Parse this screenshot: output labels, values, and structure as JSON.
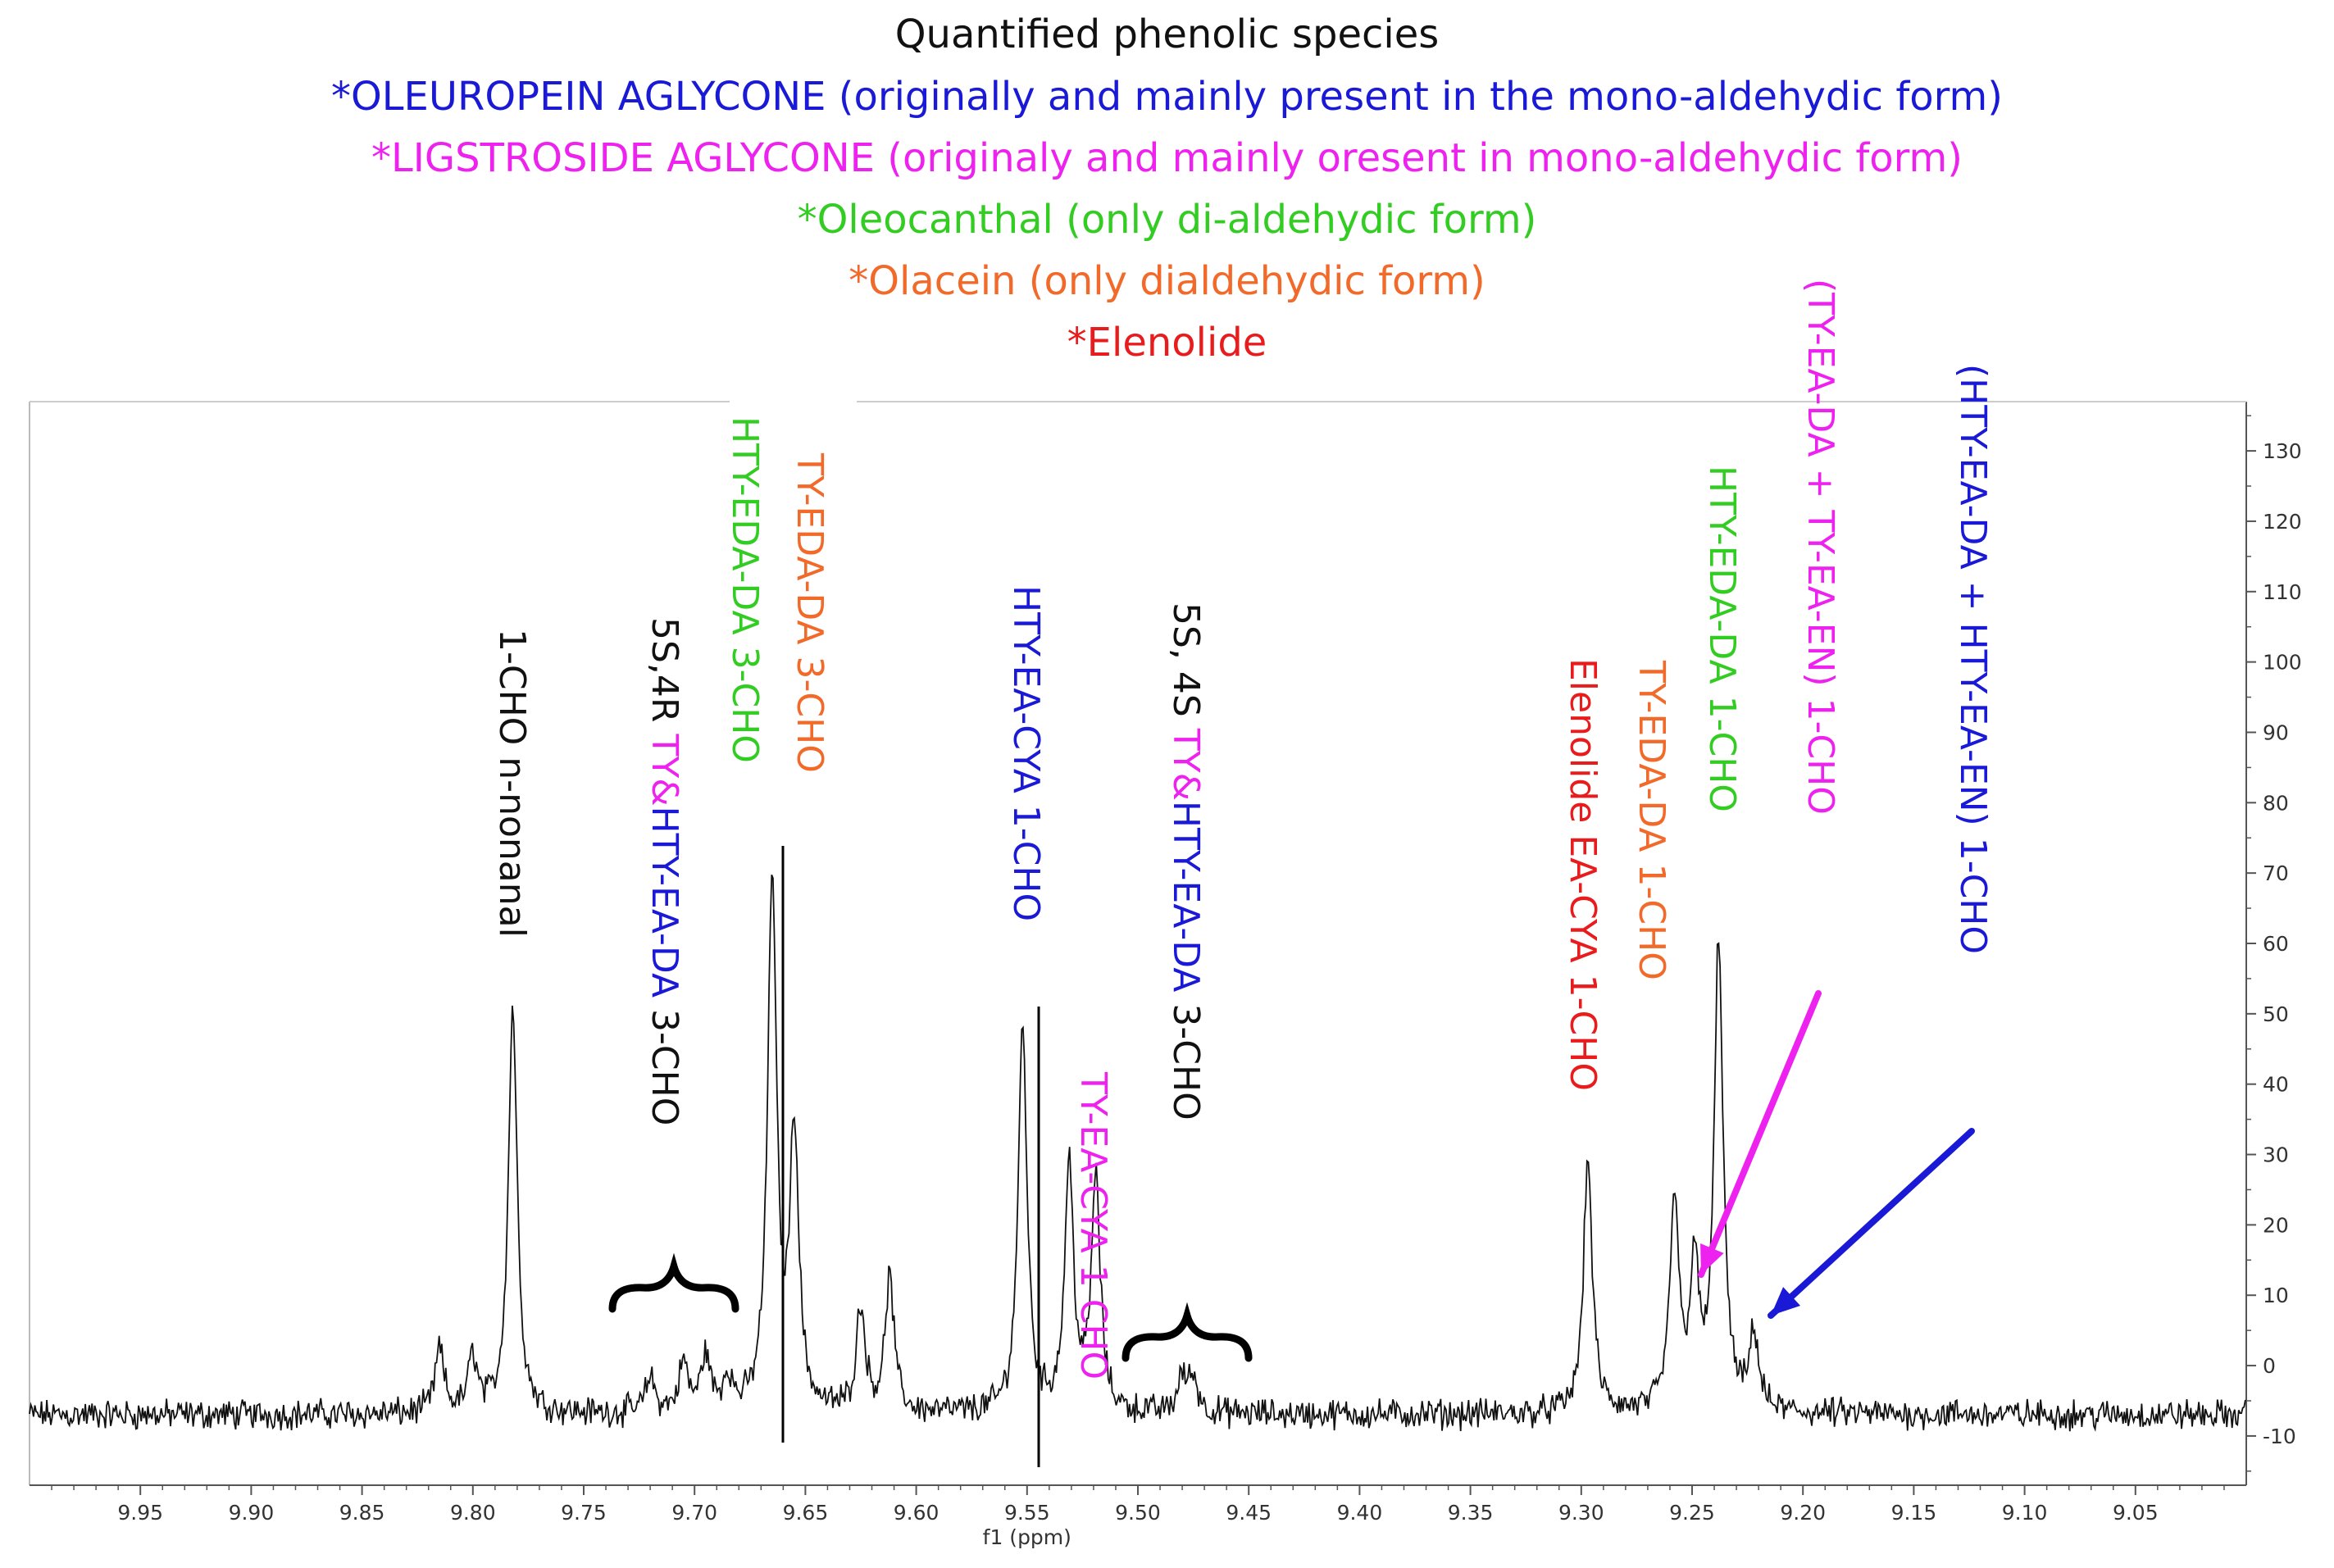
{
  "header": {
    "title": "Quantified phenolic species",
    "lines": [
      {
        "text": "*OLEUROPEIN AGLYCONE (originally and mainly present in the mono-aldehydic form)",
        "color": "#1a1ad6"
      },
      {
        "text": "*LIGSTROSIDE AGLYCONE (originaly and mainly oresent in mono-aldehydic form)",
        "color": "#ee22ee"
      },
      {
        "text": "*Oleocanthal (only di-aldehydic form)",
        "color": "#33cc22"
      },
      {
        "text": "*Olacein (only dialdehydic form)",
        "color": "#f26a2a"
      },
      {
        "text": "*Elenolide",
        "color": "#e81c1c"
      }
    ]
  },
  "colors": {
    "black": "#111111",
    "blue": "#1a1ad6",
    "magenta": "#ee22ee",
    "green": "#33cc22",
    "orange": "#f26a2a",
    "red": "#e81c1c",
    "axis": "#555555"
  },
  "chart_data": {
    "type": "line",
    "xlabel": "f1 (ppm)",
    "ylabel": "",
    "xlim": [
      10.0,
      9.0
    ],
    "ylim": [
      -17,
      137
    ],
    "x_reversed": true,
    "grid": false,
    "x_ticks": [
      "9.95",
      "9.90",
      "9.85",
      "9.80",
      "9.75",
      "9.70",
      "9.65",
      "9.60",
      "9.55",
      "9.50",
      "9.45",
      "9.40",
      "9.35",
      "9.30",
      "9.25",
      "9.20",
      "9.15",
      "9.10",
      "9.05"
    ],
    "y_ticks": [
      "-10",
      "0",
      "10",
      "20",
      "30",
      "40",
      "50",
      "60",
      "70",
      "80",
      "90",
      "100",
      "110",
      "120",
      "130"
    ],
    "baseline": -7,
    "noise_amplitude": 1.6,
    "peaks": [
      {
        "x": 9.815,
        "y": 2
      },
      {
        "x": 9.8,
        "y": 1
      },
      {
        "x": 9.782,
        "y": 51
      },
      {
        "x": 9.72,
        "y": -2
      },
      {
        "x": 9.705,
        "y": 0
      },
      {
        "x": 9.695,
        "y": 1
      },
      {
        "x": 9.685,
        "y": -2
      },
      {
        "x": 9.665,
        "y": 69
      },
      {
        "x": 9.655,
        "y": 33
      },
      {
        "x": 9.625,
        "y": 8
      },
      {
        "x": 9.612,
        "y": 12
      },
      {
        "x": 9.552,
        "y": 48
      },
      {
        "x": 9.531,
        "y": 28
      },
      {
        "x": 9.519,
        "y": 26
      },
      {
        "x": 9.48,
        "y": -2
      },
      {
        "x": 9.475,
        "y": -2
      },
      {
        "x": 9.297,
        "y": 29
      },
      {
        "x": 9.258,
        "y": 23
      },
      {
        "x": 9.249,
        "y": 13
      },
      {
        "x": 9.238,
        "y": 60
      },
      {
        "x": 9.222,
        "y": 4
      }
    ],
    "annotations": [
      {
        "lines": [
          {
            "parts": [
              {
                "text": "1-CHO n-nonanal",
                "color": "black"
              }
            ]
          }
        ],
        "x": 9.782
      },
      {
        "lines": [
          {
            "parts": [
              {
                "text": "5S,4R ",
                "color": "black"
              },
              {
                "text": "TY&",
                "color": "magenta"
              },
              {
                "text": "HTY-EA-DA",
                "color": "blue"
              },
              {
                "text": " 3-CHO",
                "color": "black"
              }
            ]
          }
        ],
        "x": 9.705
      },
      {
        "lines": [
          {
            "parts": [
              {
                "text": "HTY-EDA-DA 3-CHO",
                "color": "green"
              }
            ]
          },
          {
            "parts": [
              {
                "text": "TY-EDA-DA 3-CHO",
                "color": "orange"
              }
            ]
          }
        ],
        "x": 9.66
      },
      {
        "lines": [
          {
            "parts": [
              {
                "text": "HTY-EA-CYA 1-CHO",
                "color": "blue"
              }
            ]
          },
          {
            "parts": [
              {
                "text": "TY-EA-CYA 1 CHO",
                "color": "magenta"
              }
            ]
          }
        ],
        "x": 9.54
      },
      {
        "lines": [
          {
            "parts": [
              {
                "text": "5S, 4S ",
                "color": "black"
              },
              {
                "text": "TY&",
                "color": "magenta"
              },
              {
                "text": "HTY-EA-DA",
                "color": "blue"
              },
              {
                "text": " 3-CHO",
                "color": "black"
              }
            ]
          }
        ],
        "x": 9.475
      },
      {
        "lines": [
          {
            "parts": [
              {
                "text": "Elenolide EA-CYA 1-CHO",
                "color": "red"
              }
            ]
          },
          {
            "parts": [
              {
                "text": "TY-EDA-DA 1-CHO",
                "color": "orange"
              }
            ]
          },
          {
            "parts": [
              {
                "text": "HTY-EDA-DA 1-CHO",
                "color": "green"
              }
            ]
          }
        ],
        "x": 9.27
      },
      {
        "lines": [
          {
            "parts": [
              {
                "text": "(TY-EA-DA + TY-EA-EN) 1-CHO",
                "color": "magenta"
              }
            ]
          }
        ],
        "x": 9.245
      },
      {
        "lines": [
          {
            "parts": [
              {
                "text": "(HTY-EA-DA + HTY-EA-EN) 1-CHO",
                "color": "blue"
              }
            ]
          }
        ],
        "x": 9.22
      }
    ]
  }
}
